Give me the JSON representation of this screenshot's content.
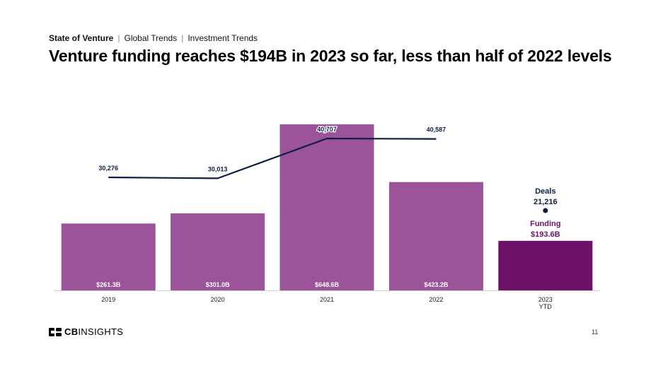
{
  "breadcrumb": {
    "section": "State of Venture",
    "level2": "Global Trends",
    "level3": "Investment Trends"
  },
  "title": "Venture funding reaches $194B in 2023 so far, less than half of 2022 levels",
  "chart_data": {
    "type": "bar",
    "title": "Venture funding reaches $194B in 2023 so far, less than half of 2022 levels",
    "categories": [
      "2019",
      "2020",
      "2021",
      "2022",
      "2023 YTD"
    ],
    "series": [
      {
        "name": "Funding",
        "type": "bar",
        "values": [
          261.3,
          301.0,
          648.6,
          423.2,
          193.6
        ],
        "labels": [
          "$261.3B",
          "$301.0B",
          "$648.6B",
          "$423.2B",
          "$193.6B"
        ],
        "colors": [
          "#9b5499",
          "#9b5499",
          "#9b5499",
          "#9b5499",
          "#6e1268"
        ]
      },
      {
        "name": "Deals",
        "type": "line",
        "values": [
          30276,
          30013,
          40707,
          40587,
          21216
        ],
        "labels": [
          "30,276",
          "30,013",
          "40,707",
          "40,587",
          "21,216"
        ],
        "color": "#0d1f45"
      }
    ],
    "annotations": {
      "deals_label": "Deals",
      "deals_value": "21,216",
      "funding_label": "Funding",
      "funding_value": "$193.6B"
    },
    "xlabel": "",
    "ylabel": "",
    "grid": false,
    "legend": "none"
  },
  "footer": {
    "logo_bold": "CB",
    "logo_light": "INSIGHTS",
    "page_number": "11"
  }
}
